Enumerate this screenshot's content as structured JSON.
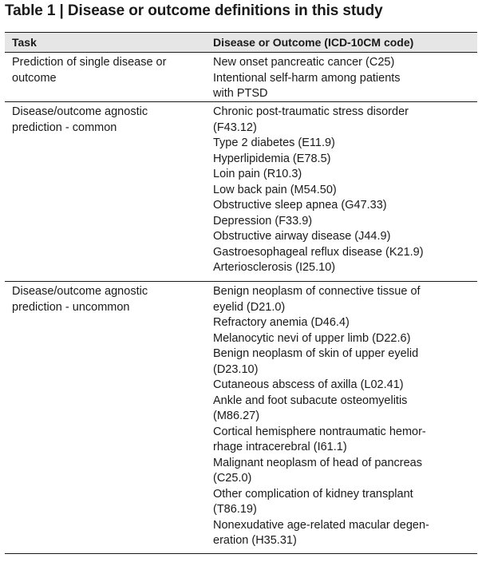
{
  "title": "Table 1 | Disease or outcome definitions in this study",
  "header": {
    "task": "Task",
    "disease": "Disease or Outcome (ICD-10CM code)"
  },
  "groups": [
    {
      "task_lines": [
        "Prediction of single disease or",
        "outcome"
      ],
      "disease_lines": [
        "New onset pancreatic cancer (C25)",
        "Intentional self-harm among patients",
        "with PTSD"
      ]
    },
    {
      "task_lines": [
        "Disease/outcome agnostic",
        "prediction - common"
      ],
      "disease_lines": [
        "Chronic post-traumatic stress disorder",
        "(F43.12)",
        "Type 2 diabetes (E11.9)",
        "Hyperlipidemia (E78.5)",
        "Loin pain (R10.3)",
        "Low back pain (M54.50)",
        "Obstructive sleep apnea (G47.33)",
        "Depression (F33.9)",
        "Obstructive airway disease (J44.9)",
        "Gastroesophageal reflux disease (K21.9)",
        "Arteriosclerosis (I25.10)"
      ]
    },
    {
      "task_lines": [
        "Disease/outcome agnostic",
        "prediction - uncommon"
      ],
      "disease_lines": [
        "Benign neoplasm of connective tissue of",
        "eyelid (D21.0)",
        "Refractory anemia (D46.4)",
        "Melanocytic nevi of upper limb (D22.6)",
        "Benign neoplasm of skin of upper eyelid",
        "(D23.10)",
        "Cutaneous abscess of axilla (L02.41)",
        "Ankle and foot subacute osteomyelitis",
        "(M86.27)",
        "Cortical hemisphere nontraumatic hemor-",
        "rhage intracerebral (I61.1)",
        "Malignant neoplasm of head of pancreas",
        "(C25.0)",
        "Other complication of kidney transplant",
        "(T86.19)",
        "Nonexudative age-related macular degen-",
        "eration (H35.31)"
      ]
    }
  ]
}
